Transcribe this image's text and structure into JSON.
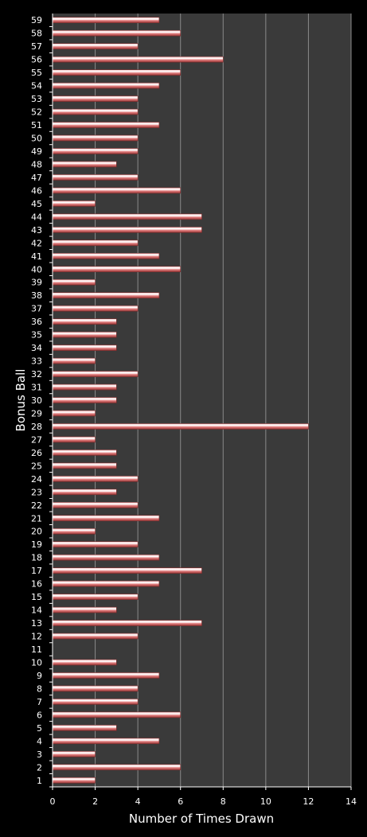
{
  "chart_data": {
    "type": "bar",
    "orientation": "horizontal",
    "xlabel": "Number of Times Drawn",
    "ylabel": "Bonus Ball",
    "xlim": [
      0,
      14
    ],
    "xticks": [
      0,
      2,
      4,
      6,
      8,
      10,
      12,
      14
    ],
    "grid": true,
    "bar_color": "#e07a7a",
    "background_color": "#000000",
    "plot_color": "#3a3a3a",
    "categories": [
      "1",
      "2",
      "3",
      "4",
      "5",
      "6",
      "7",
      "8",
      "9",
      "10",
      "11",
      "12",
      "13",
      "14",
      "15",
      "16",
      "17",
      "18",
      "19",
      "20",
      "21",
      "22",
      "23",
      "24",
      "25",
      "26",
      "27",
      "28",
      "29",
      "30",
      "31",
      "32",
      "33",
      "34",
      "35",
      "36",
      "37",
      "38",
      "39",
      "40",
      "41",
      "42",
      "43",
      "44",
      "45",
      "46",
      "47",
      "48",
      "49",
      "50",
      "51",
      "52",
      "53",
      "54",
      "55",
      "56",
      "57",
      "58",
      "59"
    ],
    "values": [
      2,
      6,
      2,
      5,
      3,
      6,
      4,
      4,
      5,
      3,
      0,
      4,
      7,
      3,
      4,
      5,
      7,
      5,
      4,
      2,
      5,
      4,
      3,
      4,
      3,
      3,
      2,
      12,
      2,
      3,
      3,
      4,
      2,
      3,
      3,
      3,
      4,
      5,
      2,
      6,
      5,
      4,
      7,
      7,
      2,
      6,
      4,
      3,
      4,
      4,
      5,
      4,
      4,
      5,
      6,
      8,
      4,
      6,
      5
    ]
  }
}
